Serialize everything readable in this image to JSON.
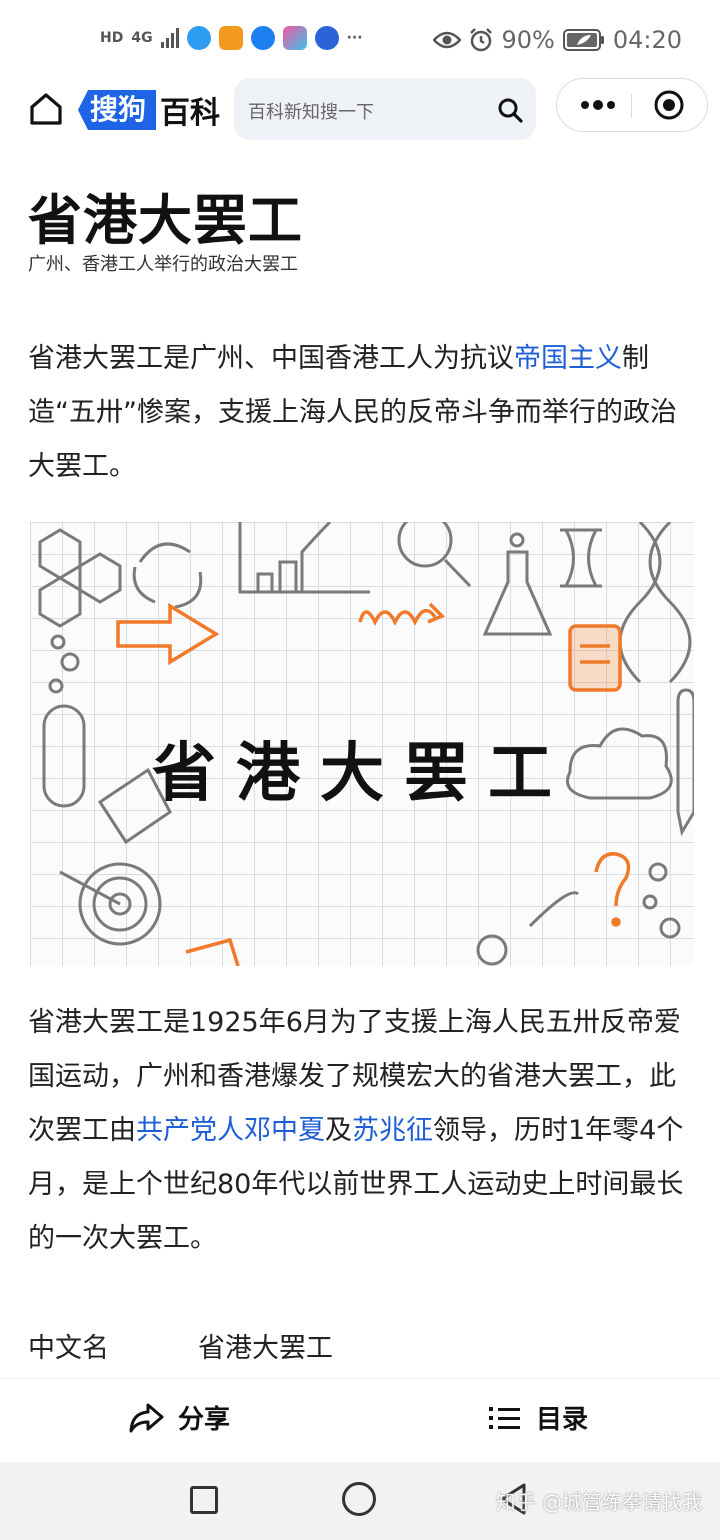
{
  "status_bar": {
    "network_hd": "HD",
    "network_type": "4G",
    "more": "···",
    "battery": "90%",
    "time": "04:20"
  },
  "nav": {
    "logo_part1": "搜狗",
    "logo_part2": "百科",
    "search_placeholder": "百科新知搜一下"
  },
  "article": {
    "title": "省港大罢工",
    "subtitle": "广州、香港工人举行的政治大罢工",
    "intro": {
      "before": "省港大罢工是广州、中国香港工人为抗议",
      "link": "帝国主义",
      "after": "制造“五卅”惨案，支援上海人民的反帝斗争而举行的政治大罢工。"
    },
    "image_title": "省港大罢工",
    "body": {
      "part1": "省港大罢工是1925年6月为了支援上海人民五卅反帝爱国运动，广州和香港爆发了规模宏大的省港大罢工，此次罢工由",
      "link1": "共产党人邓中夏",
      "mid": "及",
      "link2": "苏兆征",
      "part2": "领导，历时1年零4个月，是上个世纪80年代以前世界工人运动史上时间最长的一次大罢工。"
    },
    "info": {
      "key": "中文名",
      "value": "省港大罢工"
    }
  },
  "actionbar": {
    "share_label": "分享",
    "toc_label": "目录"
  },
  "watermark": "知乎 @城管练拳请找我",
  "colors": {
    "brand_blue": "#1f63e6",
    "link_blue": "#1f5fd6",
    "accent_orange": "#f07a2a"
  }
}
